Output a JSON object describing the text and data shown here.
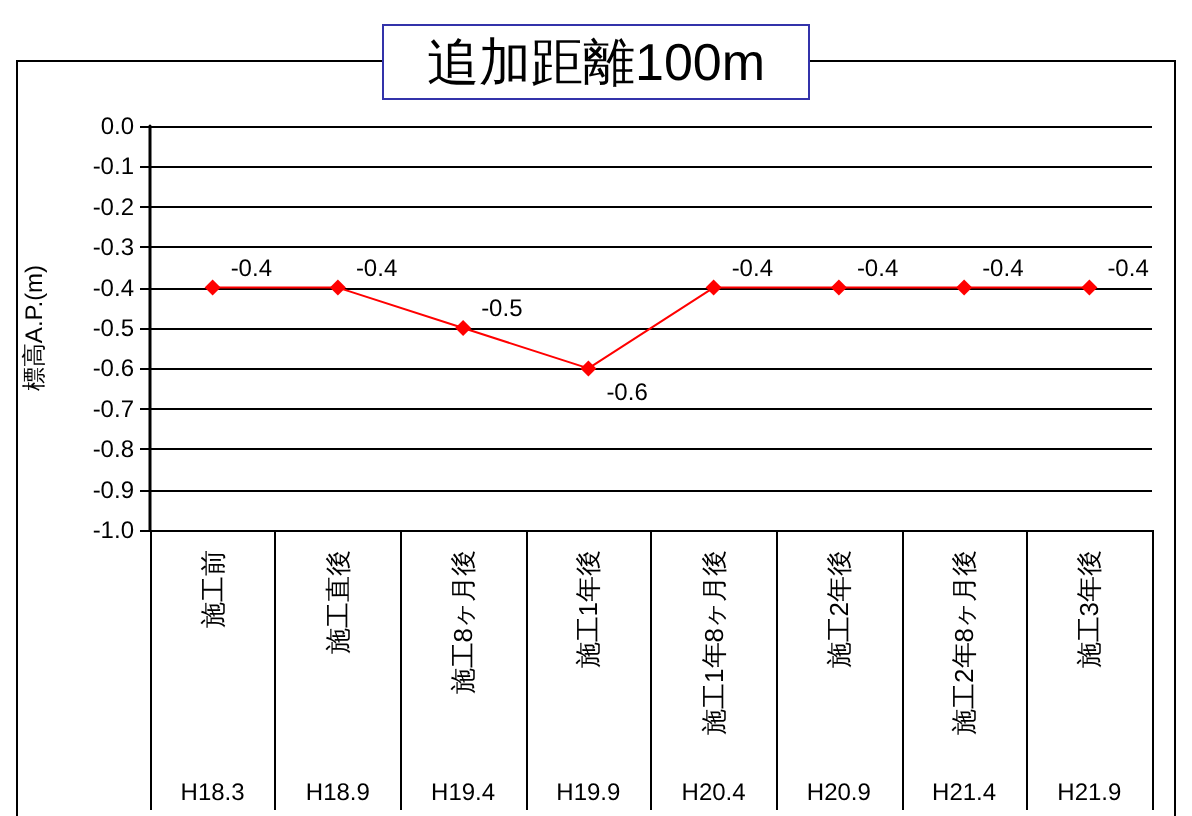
{
  "chart_data": {
    "type": "line",
    "title": "追加距離100m",
    "ylabel": "標高A.P.(m)",
    "categories": [
      "施工前\nH18.3",
      "施工直後\nH18.9",
      "施工8ヶ月後\nH19.4",
      "施工1年後\nH19.9",
      "施工1年8ヶ月後\nH20.4",
      "施工2年後\nH20.9",
      "施工2年8ヶ月後\nH21.4",
      "施工3年後\nH21.9"
    ],
    "series": [
      {
        "color": "#ff0000",
        "values": [
          -0.4,
          -0.4,
          -0.5,
          -0.6,
          -0.4,
          -0.4,
          -0.4,
          -0.4
        ]
      }
    ],
    "ylim": [
      -1,
      0
    ],
    "yticks": [
      {
        "value": 0,
        "label": "0.0"
      },
      -0.1,
      -0.2,
      -0.3,
      -0.4,
      -0.5,
      -0.6,
      -0.7,
      -0.8,
      -0.9,
      {
        "value": -1,
        "label": "-1.0"
      }
    ],
    "grid": "y",
    "data_labels": true,
    "marker": "diamond",
    "line_style": "solid"
  }
}
